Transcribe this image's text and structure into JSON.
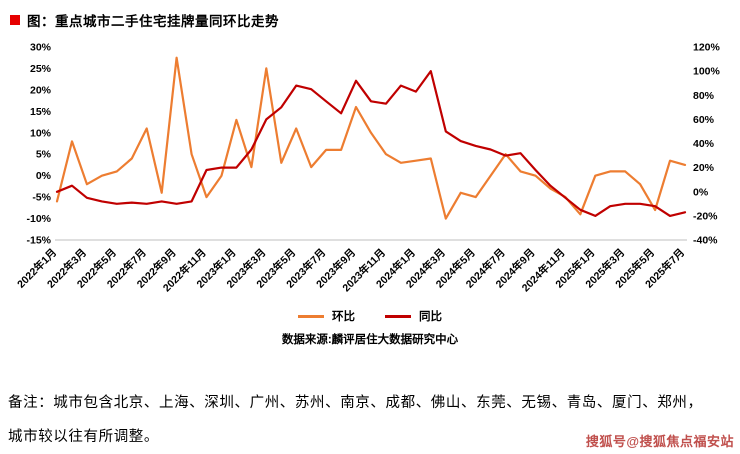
{
  "title": "图：重点城市二手住宅挂牌量同环比走势",
  "source": "数据来源:麟评居住大数据研究中心",
  "note": {
    "line1": "备注：城市包含北京、上海、深圳、广州、苏州、南京、成都、佛山、东莞、无锡、青岛、厦门、郑州，",
    "line2": "城市较以往有所调整。"
  },
  "watermark": "搜狐号@搜狐焦点福安站",
  "colors": {
    "mom": "#ED7D31",
    "yoy": "#C00000",
    "title_marker": "#E60000",
    "watermark": "#C0504D",
    "axis_line": "#bfbfbf"
  },
  "chart_data": {
    "type": "line",
    "title": "重点城市二手住宅挂牌量同环比走势",
    "tick_every": 2,
    "grid": false,
    "legend_position": "bottom",
    "x": [
      "2022年1月",
      "2022年2月",
      "2022年3月",
      "2022年4月",
      "2022年5月",
      "2022年6月",
      "2022年7月",
      "2022年8月",
      "2022年9月",
      "2022年10月",
      "2022年11月",
      "2022年12月",
      "2023年1月",
      "2023年2月",
      "2023年3月",
      "2023年4月",
      "2023年5月",
      "2023年6月",
      "2023年7月",
      "2023年8月",
      "2023年9月",
      "2023年10月",
      "2023年11月",
      "2023年12月",
      "2024年1月",
      "2024年2月",
      "2024年3月",
      "2024年4月",
      "2024年5月",
      "2024年6月",
      "2024年7月",
      "2024年8月",
      "2024年9月",
      "2024年10月",
      "2024年11月",
      "2024年12月",
      "2025年1月",
      "2025年2月",
      "2025年3月",
      "2025年4月",
      "2025年5月",
      "2025年6月",
      "2025年7月"
    ],
    "left_axis": {
      "min": -15,
      "max": 30,
      "step": 5,
      "unit": "%"
    },
    "right_axis": {
      "min": -40,
      "max": 120,
      "step": 20,
      "unit": "%"
    },
    "series": [
      {
        "key": "mom",
        "name": "环比",
        "axis": "left",
        "color": "#ED7D31",
        "values": [
          -6,
          8,
          -2,
          0,
          1,
          4,
          11,
          -4,
          27.5,
          5,
          -5,
          0,
          13,
          2,
          25,
          3,
          11,
          2,
          6,
          6,
          16,
          10,
          5,
          3,
          3.5,
          4,
          -10,
          -4,
          -5,
          0,
          5,
          1,
          0,
          -3,
          -5,
          -9,
          0,
          1,
          1,
          -2,
          -8,
          3.5,
          2.5
        ]
      },
      {
        "key": "yoy",
        "name": "同比",
        "axis": "right",
        "color": "#C00000",
        "values": [
          0,
          5,
          -5,
          -8,
          -10,
          -9,
          -10,
          -8,
          -10,
          -8,
          18,
          20,
          20,
          35,
          60,
          70,
          88,
          85,
          75,
          65,
          92,
          75,
          73,
          88,
          83,
          100,
          50,
          42,
          38,
          35,
          30,
          32,
          18,
          5,
          -5,
          -15,
          -20,
          -12,
          -10,
          -10,
          -12,
          -20,
          -17
        ]
      }
    ]
  }
}
